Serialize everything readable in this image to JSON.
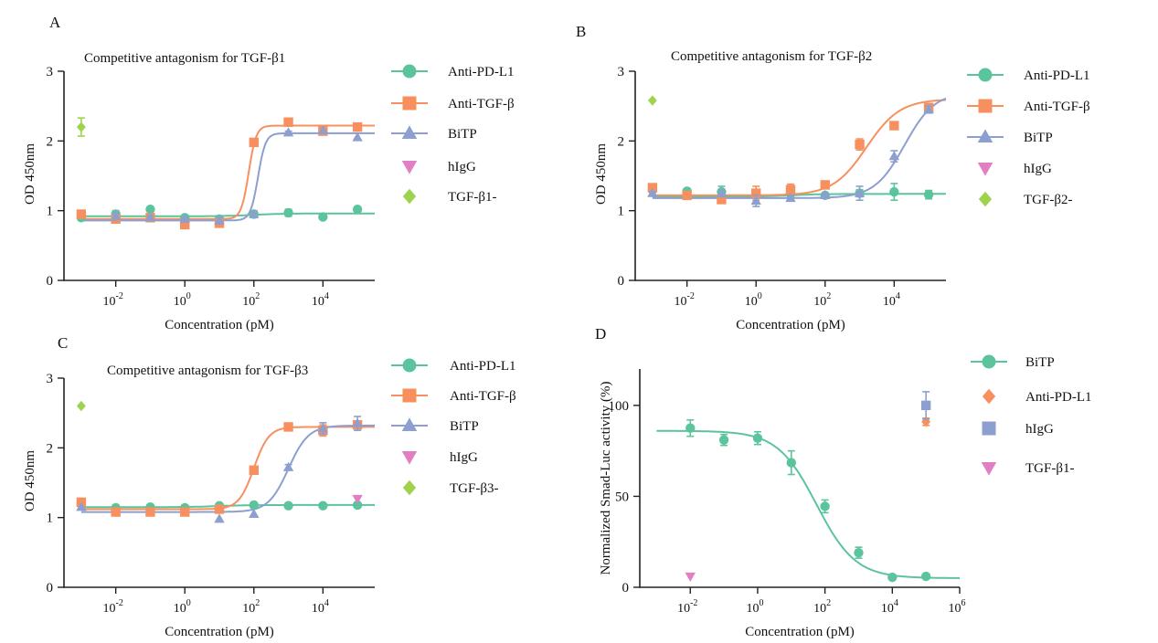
{
  "chart_data": [
    {
      "panel": "A",
      "type": "scatter",
      "title": "Competitive antagonism for TGF-β1",
      "xlabel": "Concentration (pM)",
      "ylabel": "OD 450nm",
      "xscale": "log10",
      "xlim": [
        -3.5,
        5.5
      ],
      "ylim": [
        0,
        3
      ],
      "yticks": [
        "0",
        "1",
        "2",
        "3"
      ],
      "xticks": [
        {
          "base": "10",
          "exp": "-2",
          "v": -2
        },
        {
          "base": "10",
          "exp": "0",
          "v": 0
        },
        {
          "base": "10",
          "exp": "2",
          "v": 2
        },
        {
          "base": "10",
          "exp": "4",
          "v": 4
        }
      ],
      "legend_position": "right",
      "series": [
        {
          "name": "Anti-PD-L1",
          "color": "#5cc49c",
          "marker": "circle",
          "points": [
            [
              -3,
              0.9,
              0.03
            ],
            [
              -2,
              0.95,
              0.05
            ],
            [
              -1,
              1.02,
              0
            ],
            [
              0,
              0.9,
              0.02
            ],
            [
              1,
              0.88,
              0.03
            ],
            [
              2,
              0.95,
              0.05
            ],
            [
              3,
              0.97,
              0.05
            ],
            [
              4,
              0.91,
              0
            ],
            [
              5,
              1.02,
              0
            ]
          ],
          "fit": {
            "bottom": 0.92,
            "top": 0.96,
            "logec50": 2,
            "hill": 1
          }
        },
        {
          "name": "Anti-TGF-β",
          "color": "#f7905e",
          "marker": "square",
          "points": [
            [
              -3,
              0.95,
              0
            ],
            [
              -2,
              0.88,
              0.03
            ],
            [
              -1,
              0.9,
              0.03
            ],
            [
              0,
              0.8,
              0.04
            ],
            [
              1,
              0.82,
              0.04
            ],
            [
              2,
              1.98,
              0
            ],
            [
              3,
              2.27,
              0
            ],
            [
              4,
              2.14,
              0
            ],
            [
              5,
              2.2,
              0
            ]
          ],
          "fit": {
            "bottom": 0.88,
            "top": 2.22,
            "logec50": 1.85,
            "hill": 4
          }
        },
        {
          "name": "BiTP",
          "color": "#8d9fcf",
          "marker": "triangle",
          "points": [
            [
              -2,
              0.92,
              0.05
            ],
            [
              -1,
              0.9,
              0.03
            ],
            [
              0,
              0.88,
              0.04
            ],
            [
              1,
              0.86,
              0.05
            ],
            [
              2,
              0.95,
              0.04
            ],
            [
              3,
              2.12,
              0.02
            ],
            [
              4,
              2.15,
              0
            ],
            [
              5,
              2.05,
              0
            ]
          ],
          "fit": {
            "bottom": 0.86,
            "top": 2.11,
            "logec50": 2.12,
            "hill": 4
          }
        },
        {
          "name": "hIgG",
          "color": "#e27fc4",
          "marker": "triangle-down",
          "points": []
        },
        {
          "name": "TGF-β1-",
          "color": "#9fd24d",
          "marker": "diamond",
          "points": [
            [
              -3,
              2.2,
              0.13
            ]
          ]
        }
      ]
    },
    {
      "panel": "B",
      "type": "scatter",
      "title": "Competitive antagonism for TGF-β2",
      "xlabel": "Concentration (pM)",
      "ylabel": "OD 450nm",
      "xscale": "log10",
      "xlim": [
        -3.5,
        5.5
      ],
      "ylim": [
        0,
        3
      ],
      "yticks": [
        "0",
        "1",
        "2",
        "3"
      ],
      "xticks": [
        {
          "base": "10",
          "exp": "-2",
          "v": -2
        },
        {
          "base": "10",
          "exp": "0",
          "v": 0
        },
        {
          "base": "10",
          "exp": "2",
          "v": 2
        },
        {
          "base": "10",
          "exp": "4",
          "v": 4
        }
      ],
      "legend_position": "right",
      "series": [
        {
          "name": "Anti-PD-L1",
          "color": "#5cc49c",
          "marker": "circle",
          "points": [
            [
              -3,
              1.3,
              0.02
            ],
            [
              -2,
              1.28,
              0.02
            ],
            [
              -1,
              1.27,
              0.08
            ],
            [
              0,
              1.24,
              0.05
            ],
            [
              1,
              1.24,
              0.05
            ],
            [
              2,
              1.22,
              0.03
            ],
            [
              3,
              1.25,
              0.05
            ],
            [
              4,
              1.27,
              0.12
            ],
            [
              5,
              1.23,
              0.06
            ]
          ],
          "fit": {
            "bottom": 1.2,
            "top": 1.24,
            "logec50": 1,
            "hill": 1
          }
        },
        {
          "name": "Anti-TGF-β",
          "color": "#f7905e",
          "marker": "square",
          "points": [
            [
              -3,
              1.33,
              0.03
            ],
            [
              -2,
              1.22,
              0.03
            ],
            [
              -1,
              1.16,
              0.05
            ],
            [
              0,
              1.25,
              0.1
            ],
            [
              1,
              1.3,
              0.08
            ],
            [
              2,
              1.37,
              0.03
            ],
            [
              3,
              1.95,
              0.08
            ],
            [
              4,
              2.22,
              0.04
            ],
            [
              5,
              2.48,
              0.04
            ]
          ],
          "fit": {
            "bottom": 1.22,
            "top": 2.6,
            "logec50": 3.2,
            "hill": 0.9
          }
        },
        {
          "name": "BiTP",
          "color": "#8d9fcf",
          "marker": "triangle",
          "points": [
            [
              -3,
              1.25,
              0.02
            ],
            [
              -1,
              1.25,
              0.05
            ],
            [
              0,
              1.14,
              0.08
            ],
            [
              1,
              1.18,
              0.04
            ],
            [
              2,
              1.22,
              0.03
            ],
            [
              3,
              1.25,
              0.1
            ],
            [
              4,
              1.78,
              0.08
            ],
            [
              5,
              2.45,
              0.05
            ]
          ],
          "fit": {
            "bottom": 1.18,
            "top": 2.7,
            "logec50": 4.3,
            "hill": 1
          }
        },
        {
          "name": "hIgG",
          "color": "#e27fc4",
          "marker": "triangle-down",
          "points": []
        },
        {
          "name": "TGF-β2-",
          "color": "#9fd24d",
          "marker": "diamond",
          "points": [
            [
              -3,
              2.58,
              0
            ]
          ]
        }
      ]
    },
    {
      "panel": "C",
      "type": "scatter",
      "title": "Competitive antagonism for TGF-β3",
      "xlabel": "Concentration (pM)",
      "ylabel": "OD 450nm",
      "xscale": "log10",
      "xlim": [
        -3.5,
        5.5
      ],
      "ylim": [
        0,
        3
      ],
      "yticks": [
        "0",
        "1",
        "2",
        "3"
      ],
      "xticks": [
        {
          "base": "10",
          "exp": "-2",
          "v": -2
        },
        {
          "base": "10",
          "exp": "0",
          "v": 0
        },
        {
          "base": "10",
          "exp": "2",
          "v": 2
        },
        {
          "base": "10",
          "exp": "4",
          "v": 4
        }
      ],
      "legend_position": "right",
      "series": [
        {
          "name": "Anti-PD-L1",
          "color": "#5cc49c",
          "marker": "circle",
          "points": [
            [
              -3,
              1.2,
              0
            ],
            [
              -2,
              1.14,
              0
            ],
            [
              -1,
              1.15,
              0
            ],
            [
              0,
              1.14,
              0
            ],
            [
              1,
              1.17,
              0
            ],
            [
              2,
              1.18,
              0
            ],
            [
              3,
              1.17,
              0
            ],
            [
              4,
              1.17,
              0
            ],
            [
              5,
              1.18,
              0
            ]
          ],
          "fit": {
            "bottom": 1.15,
            "top": 1.18,
            "logec50": 1,
            "hill": 1
          }
        },
        {
          "name": "Anti-TGF-β",
          "color": "#f7905e",
          "marker": "square",
          "points": [
            [
              -3,
              1.22,
              0
            ],
            [
              -2,
              1.08,
              0
            ],
            [
              -1,
              1.08,
              0
            ],
            [
              0,
              1.08,
              0
            ],
            [
              1,
              1.12,
              0
            ],
            [
              2,
              1.68,
              0
            ],
            [
              3,
              2.3,
              0
            ],
            [
              4,
              2.25,
              0.08
            ],
            [
              5,
              2.33,
              0.05
            ]
          ],
          "fit": {
            "bottom": 1.12,
            "top": 2.3,
            "logec50": 2,
            "hill": 2
          }
        },
        {
          "name": "BiTP",
          "color": "#8d9fcf",
          "marker": "triangle",
          "points": [
            [
              -3,
              1.15,
              0
            ],
            [
              1,
              0.98,
              0
            ],
            [
              2,
              1.05,
              0
            ],
            [
              3,
              1.72,
              0.04
            ],
            [
              4,
              2.28,
              0.08
            ],
            [
              5,
              2.35,
              0.1
            ]
          ],
          "fit": {
            "bottom": 1.08,
            "top": 2.32,
            "logec50": 3,
            "hill": 1.5
          }
        },
        {
          "name": "hIgG",
          "color": "#e27fc4",
          "marker": "triangle-down",
          "points": [
            [
              5,
              1.27,
              0
            ]
          ]
        },
        {
          "name": "TGF-β3-",
          "color": "#9fd24d",
          "marker": "diamond",
          "points": [
            [
              -3,
              2.6,
              0
            ]
          ]
        }
      ]
    },
    {
      "panel": "D",
      "type": "scatter",
      "title": "",
      "xlabel": "Concentration (pM)",
      "ylabel": "Normalized Smad-Luc activity (%)",
      "xscale": "log10",
      "xlim": [
        -3.5,
        6
      ],
      "ylim": [
        0,
        120
      ],
      "yticks": [
        "0",
        "50",
        "100"
      ],
      "xticks": [
        {
          "base": "10",
          "exp": "-2",
          "v": -2
        },
        {
          "base": "10",
          "exp": "0",
          "v": 0
        },
        {
          "base": "10",
          "exp": "2",
          "v": 2
        },
        {
          "base": "10",
          "exp": "4",
          "v": 4
        },
        {
          "base": "10",
          "exp": "6",
          "v": 6
        }
      ],
      "legend_position": "right",
      "series": [
        {
          "name": "BiTP",
          "color": "#5cc49c",
          "marker": "circle",
          "points": [
            [
              -2,
              87.5,
              4.5
            ],
            [
              -1,
              81,
              3
            ],
            [
              0,
              82,
              3.5
            ],
            [
              1,
              68.5,
              6.5
            ],
            [
              2,
              44.5,
              3.5
            ],
            [
              3,
              19,
              3
            ],
            [
              4,
              5.5,
              0
            ],
            [
              5,
              6,
              0
            ]
          ],
          "fit": {
            "bottom": 5,
            "top": 86,
            "logec50": 1.75,
            "hill": -0.75
          }
        },
        {
          "name": "Anti-PD-L1",
          "color": "#f7905e",
          "marker": "diamond",
          "points": [
            [
              5,
              91,
              2
            ]
          ]
        },
        {
          "name": "hIgG",
          "color": "#8d9fcf",
          "marker": "square",
          "points": [
            [
              5,
              100,
              7.5
            ]
          ]
        },
        {
          "name": "TGF-β1-",
          "color": "#e27fc4",
          "marker": "triangle-down",
          "points": [
            [
              -2,
              6,
              0
            ]
          ]
        }
      ]
    }
  ]
}
